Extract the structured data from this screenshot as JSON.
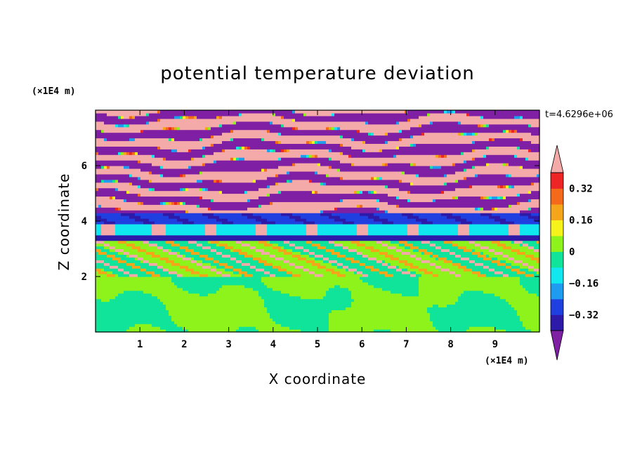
{
  "chart_data": {
    "type": "heatmap",
    "title": "potential temperature deviation",
    "xlabel": "X coordinate",
    "ylabel": "Z coordinate",
    "x_unit": "(×1E4 m)",
    "y_unit": "(×1E4 m)",
    "time_label": "t=4.6296e+06",
    "xlim": [
      0,
      10
    ],
    "ylim": [
      0,
      8
    ],
    "xticks": [
      1,
      2,
      3,
      4,
      5,
      6,
      7,
      8,
      9
    ],
    "yticks": [
      2,
      4,
      6
    ],
    "colorbar": {
      "levels": [
        -0.4,
        -0.32,
        -0.24,
        -0.16,
        -0.08,
        0,
        0.08,
        0.16,
        0.24,
        0.32,
        0.4
      ],
      "tick_labels": [
        "0.32",
        "0.16",
        "0",
        "−0.16",
        "−0.32"
      ],
      "tick_values": [
        0.32,
        0.16,
        0,
        -0.16,
        -0.32
      ],
      "colors": [
        "#7f1fa4",
        "#2e1aa8",
        "#1f3fe0",
        "#1f9bf0",
        "#10e7ef",
        "#10e39a",
        "#8ef31a",
        "#f6f31a",
        "#f4a51a",
        "#f46a1a",
        "#ee2525",
        "#f4aaa8"
      ],
      "extend": "both"
    },
    "bands": [
      {
        "z": [
          0.0,
          2.0
        ],
        "level": 0.04,
        "note": "green convective layer"
      },
      {
        "z": [
          2.0,
          3.3
        ],
        "level": 0.04
      },
      {
        "z": [
          3.3,
          3.5
        ],
        "level": -0.36
      },
      {
        "z": [
          3.5,
          3.9
        ],
        "level": -0.12
      },
      {
        "z": [
          3.9,
          4.3
        ],
        "level": -0.28
      },
      {
        "z": [
          4.3,
          8.0
        ],
        "level": "alternating",
        "note": "stripes alternating 0.45 / -0.45"
      }
    ]
  }
}
